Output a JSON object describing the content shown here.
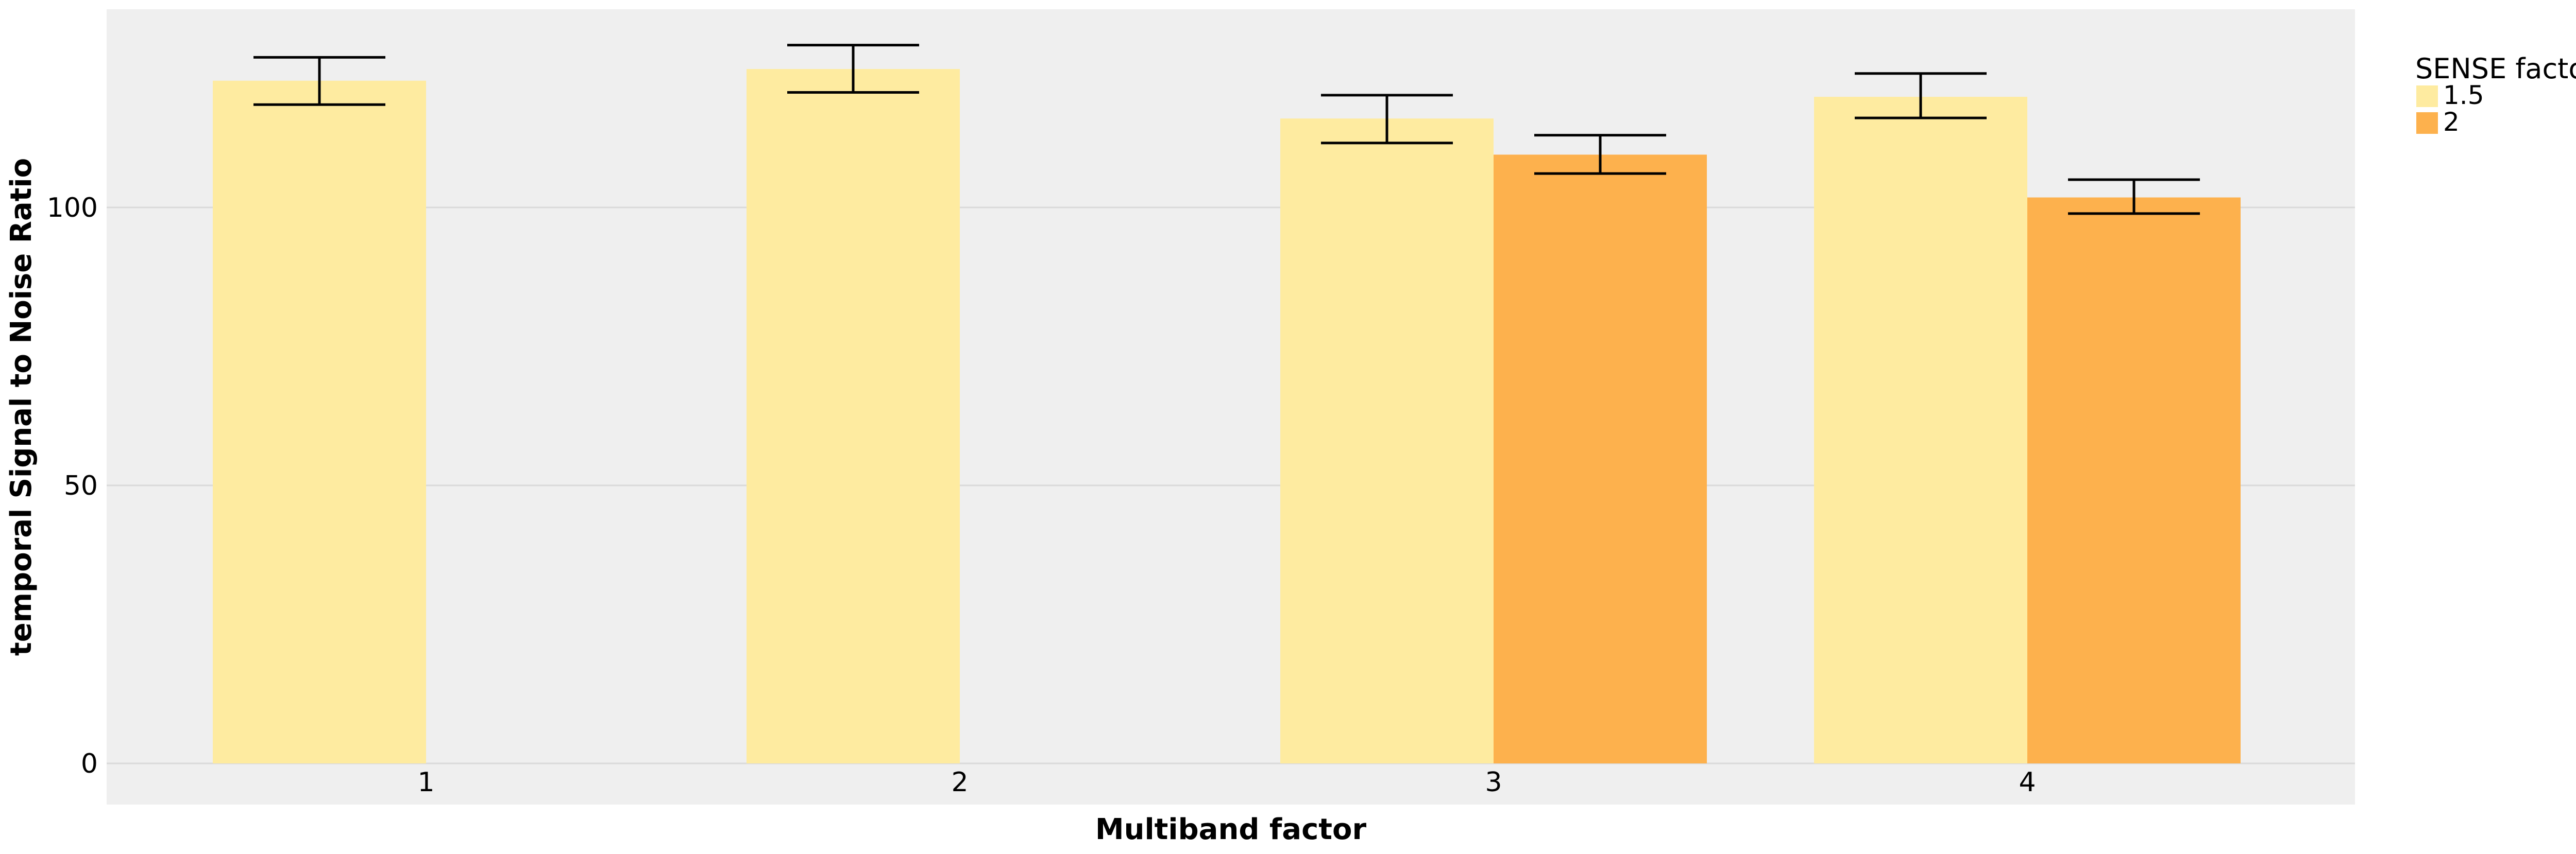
{
  "chart_data": {
    "type": "bar",
    "title": "",
    "xlabel": "Multiband factor",
    "ylabel": "temporal Signal to Noise Ratio",
    "categories": [
      "1",
      "2",
      "3",
      "4"
    ],
    "ylim": [
      0,
      142
    ],
    "yticks": [
      0,
      50,
      100
    ],
    "ytick_labels": [
      "0",
      "50",
      "100"
    ],
    "grid": true,
    "legend": {
      "title": "SENSE factor",
      "position": "right"
    },
    "series": [
      {
        "name": "1.5",
        "color": "#FEEBA0",
        "values": [
          122.8,
          124.9,
          116.0,
          119.9
        ],
        "error_low": [
          118.5,
          120.7,
          111.6,
          116.1
        ],
        "error_high": [
          127.0,
          129.2,
          120.2,
          124.1
        ]
      },
      {
        "name": "2",
        "color": "#FDB14D",
        "values": [
          null,
          null,
          109.5,
          101.8
        ],
        "error_low": [
          null,
          null,
          106.1,
          98.9
        ],
        "error_high": [
          null,
          null,
          113.0,
          105.0
        ]
      }
    ],
    "colors": {
      "panel_background": "#EFEFEF",
      "gridline": "#D9D9D9",
      "error_bar": "#000000"
    }
  }
}
